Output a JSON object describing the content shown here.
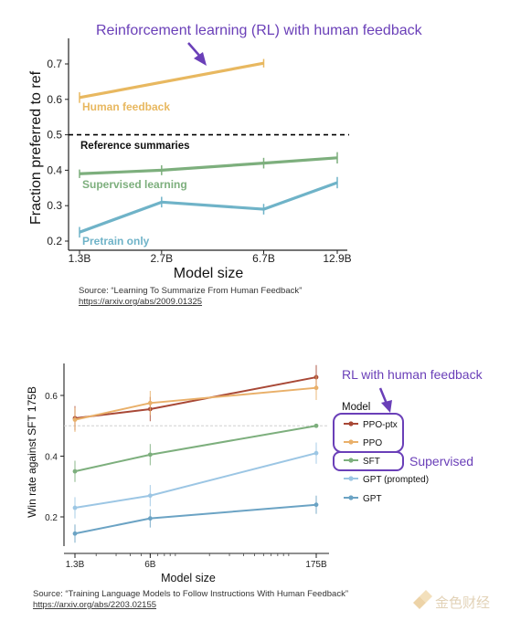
{
  "chart_data": [
    {
      "type": "line",
      "title": "",
      "xlabel": "Model size",
      "ylabel": "Fraction preferred to ref",
      "x_scale": "log",
      "x": [
        1.3,
        2.7,
        6.7,
        12.9
      ],
      "x_tick_labels": [
        "1.3B",
        "2.7B",
        "6.7B",
        "12.9B"
      ],
      "y_ticks": [
        0.2,
        0.3,
        0.4,
        0.5,
        0.6,
        0.7
      ],
      "y_tick_labels": [
        "0.2",
        "0.3",
        "0.4",
        "0.5",
        "0.6",
        "0.7"
      ],
      "ylim": [
        0.18,
        0.74
      ],
      "grid": false,
      "reference_line": {
        "y": 0.5,
        "label": "Reference summaries"
      },
      "series": [
        {
          "name": "Human feedback",
          "color": "#E8B860",
          "values": [
            0.605,
            null,
            0.702,
            null
          ],
          "error": [
            0.015,
            null,
            0.012,
            null
          ]
        },
        {
          "name": "Supervised learning",
          "color": "#7DAF7D",
          "values": [
            0.39,
            0.4,
            0.42,
            0.435
          ],
          "error": [
            0.012,
            0.014,
            0.015,
            0.016
          ]
        },
        {
          "name": "Pretrain only",
          "color": "#6FB3C8",
          "values": [
            0.225,
            0.31,
            0.29,
            0.365
          ],
          "error": [
            0.015,
            0.015,
            0.015,
            0.016
          ]
        }
      ],
      "annotation": "Reinforcement learning (RL) with human feedback",
      "source": "Source: “Learning To Summarize From Human Feedback”",
      "source_url": "https://arxiv.org/abs/2009.01325"
    },
    {
      "type": "line",
      "title": "",
      "xlabel": "Model size",
      "ylabel": "Win rate against SFT 175B",
      "x_scale": "log",
      "x": [
        1.3,
        6,
        175
      ],
      "x_tick_labels": [
        "1.3B",
        "6B",
        "175B"
      ],
      "y_ticks": [
        0.2,
        0.4,
        0.6
      ],
      "y_tick_labels": [
        "0.2",
        "0.4",
        "0.6"
      ],
      "ylim": [
        0.1,
        0.7
      ],
      "grid": false,
      "reference_line": {
        "y": 0.5
      },
      "legend_title": "Model",
      "legend_position": "right",
      "series": [
        {
          "name": "PPO-ptx",
          "color": "#A84836",
          "values": [
            0.525,
            0.555,
            0.66
          ],
          "error": [
            0.04,
            0.04,
            0.04
          ]
        },
        {
          "name": "PPO",
          "color": "#E9B06A",
          "values": [
            0.52,
            0.575,
            0.625
          ],
          "error": [
            0.04,
            0.04,
            0.04
          ]
        },
        {
          "name": "SFT",
          "color": "#7DAF7D",
          "values": [
            0.35,
            0.405,
            0.5
          ],
          "error": [
            0.035,
            0.035,
            0.0
          ]
        },
        {
          "name": "GPT (prompted)",
          "color": "#9CC6E4",
          "values": [
            0.23,
            0.27,
            0.41
          ],
          "error": [
            0.035,
            0.035,
            0.035
          ]
        },
        {
          "name": "GPT",
          "color": "#6BA3C4",
          "values": [
            0.145,
            0.195,
            0.24
          ],
          "error": [
            0.03,
            0.03,
            0.03
          ]
        }
      ],
      "annotations": [
        "RL with human feedback",
        "Supervised"
      ],
      "source": "Source: “Training Language Models to Follow Instructions With Human Feedback”",
      "source_url": "https://arxiv.org/abs/2203.02155"
    }
  ],
  "watermark": "金色财经",
  "colors": {
    "annotation": "#6A3FB8",
    "reference": "#000000",
    "tick": "#d8d8d8"
  }
}
